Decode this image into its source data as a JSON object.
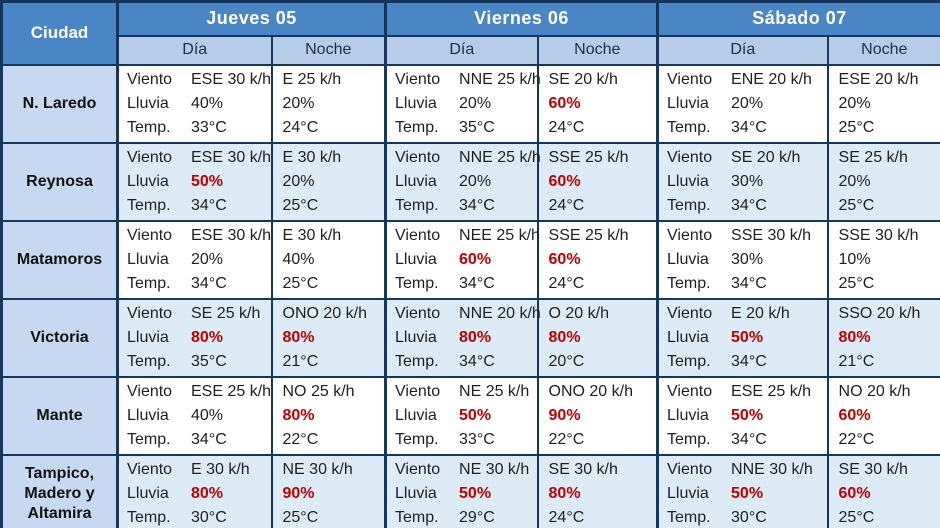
{
  "colors": {
    "header_blue": "#4a86c6",
    "subheader_blue": "#b7cce6",
    "city_cell_blue": "#c6d9f1",
    "alt_row_blue": "#dcebf6",
    "border_navy": "#17365d",
    "divider_blue": "#4a86c6",
    "rain_red": "#c00000",
    "header_text": "#ffffff",
    "text_dark": "#1f1f1f"
  },
  "table": {
    "city_header": "Ciudad",
    "days": [
      {
        "label": "Jueves 05"
      },
      {
        "label": "Viernes 06"
      },
      {
        "label": "Sábado 07"
      }
    ],
    "subheaders": {
      "dia": "Día",
      "noche": "Noche"
    },
    "row_labels": {
      "viento": "Viento",
      "lluvia": "Lluvia",
      "temp": "Temp."
    },
    "rows": [
      {
        "city": "N. Laredo",
        "cells": [
          {
            "viento": "ESE 30 k/h",
            "lluvia": "40%",
            "lluvia_red": false,
            "temp": "33°C"
          },
          {
            "viento": "E 25 k/h",
            "lluvia": "20%",
            "lluvia_red": false,
            "temp": "24°C"
          },
          {
            "viento": "NNE 25 k/h",
            "lluvia": "20%",
            "lluvia_red": false,
            "temp": "35°C"
          },
          {
            "viento": "SE 20 k/h",
            "lluvia": "60%",
            "lluvia_red": true,
            "temp": "24°C"
          },
          {
            "viento": "ENE 20 k/h",
            "lluvia": "20%",
            "lluvia_red": false,
            "temp": "34°C"
          },
          {
            "viento": "ESE 20 k/h",
            "lluvia": "20%",
            "lluvia_red": false,
            "temp": "25°C"
          }
        ]
      },
      {
        "city": "Reynosa",
        "cells": [
          {
            "viento": "ESE 30 k/h",
            "lluvia": "50%",
            "lluvia_red": true,
            "temp": "34°C"
          },
          {
            "viento": "E 30 k/h",
            "lluvia": "20%",
            "lluvia_red": false,
            "temp": "25°C"
          },
          {
            "viento": "NNE 25 k/h",
            "lluvia": "20%",
            "lluvia_red": false,
            "temp": "34°C"
          },
          {
            "viento": "SSE 25 k/h",
            "lluvia": "60%",
            "lluvia_red": true,
            "temp": "24°C"
          },
          {
            "viento": "SE 20 k/h",
            "lluvia": "30%",
            "lluvia_red": false,
            "temp": "34°C"
          },
          {
            "viento": "SE 25 k/h",
            "lluvia": "20%",
            "lluvia_red": false,
            "temp": "25°C"
          }
        ]
      },
      {
        "city": "Matamoros",
        "cells": [
          {
            "viento": "ESE 30 k/h",
            "lluvia": "20%",
            "lluvia_red": false,
            "temp": "34°C"
          },
          {
            "viento": "E 30 k/h",
            "lluvia": "40%",
            "lluvia_red": false,
            "temp": "25°C"
          },
          {
            "viento": "NEE 25 k/h",
            "lluvia": "60%",
            "lluvia_red": true,
            "temp": "34°C"
          },
          {
            "viento": "SSE 25 k/h",
            "lluvia": "60%",
            "lluvia_red": true,
            "temp": "24°C"
          },
          {
            "viento": "SSE 30 k/h",
            "lluvia": "30%",
            "lluvia_red": false,
            "temp": "34°C"
          },
          {
            "viento": "SSE 30 k/h",
            "lluvia": "10%",
            "lluvia_red": false,
            "temp": "25°C"
          }
        ]
      },
      {
        "city": "Victoria",
        "cells": [
          {
            "viento": "SE 25 k/h",
            "lluvia": "80%",
            "lluvia_red": true,
            "temp": "35°C"
          },
          {
            "viento": "ONO 20 k/h",
            "lluvia": "80%",
            "lluvia_red": true,
            "temp": "21°C"
          },
          {
            "viento": "NNE 20 k/h",
            "lluvia": "80%",
            "lluvia_red": true,
            "temp": "34°C"
          },
          {
            "viento": "O 20 k/h",
            "lluvia": "80%",
            "lluvia_red": true,
            "temp": "20°C"
          },
          {
            "viento": "E 20 k/h",
            "lluvia": "50%",
            "lluvia_red": true,
            "temp": "34°C"
          },
          {
            "viento": "SSO 20 k/h",
            "lluvia": "80%",
            "lluvia_red": true,
            "temp": "21°C"
          }
        ]
      },
      {
        "city": "Mante",
        "cells": [
          {
            "viento": "ESE 25 k/h",
            "lluvia": "40%",
            "lluvia_red": false,
            "temp": "34°C"
          },
          {
            "viento": "NO 25 k/h",
            "lluvia": "80%",
            "lluvia_red": true,
            "temp": "22°C"
          },
          {
            "viento": "NE 25 k/h",
            "lluvia": "50%",
            "lluvia_red": true,
            "temp": "33°C"
          },
          {
            "viento": "ONO 20 k/h",
            "lluvia": "90%",
            "lluvia_red": true,
            "temp": "22°C"
          },
          {
            "viento": "ESE 25 k/h",
            "lluvia": "50%",
            "lluvia_red": true,
            "temp": "34°C"
          },
          {
            "viento": "NO 20 k/h",
            "lluvia": "60%",
            "lluvia_red": true,
            "temp": "22°C"
          }
        ]
      },
      {
        "city": "Tampico, Madero y Altamira",
        "cells": [
          {
            "viento": "E 30 k/h",
            "lluvia": "80%",
            "lluvia_red": true,
            "temp": "30°C"
          },
          {
            "viento": "NE 30 k/h",
            "lluvia": "90%",
            "lluvia_red": true,
            "temp": "25°C"
          },
          {
            "viento": "NE 30 k/h",
            "lluvia": "50%",
            "lluvia_red": true,
            "temp": "29°C"
          },
          {
            "viento": "SE 30 k/h",
            "lluvia": "80%",
            "lluvia_red": true,
            "temp": "24°C"
          },
          {
            "viento": "NNE 30 k/h",
            "lluvia": "50%",
            "lluvia_red": true,
            "temp": "30°C"
          },
          {
            "viento": "SE 30 k/h",
            "lluvia": "60%",
            "lluvia_red": true,
            "temp": "25°C"
          }
        ]
      }
    ]
  }
}
